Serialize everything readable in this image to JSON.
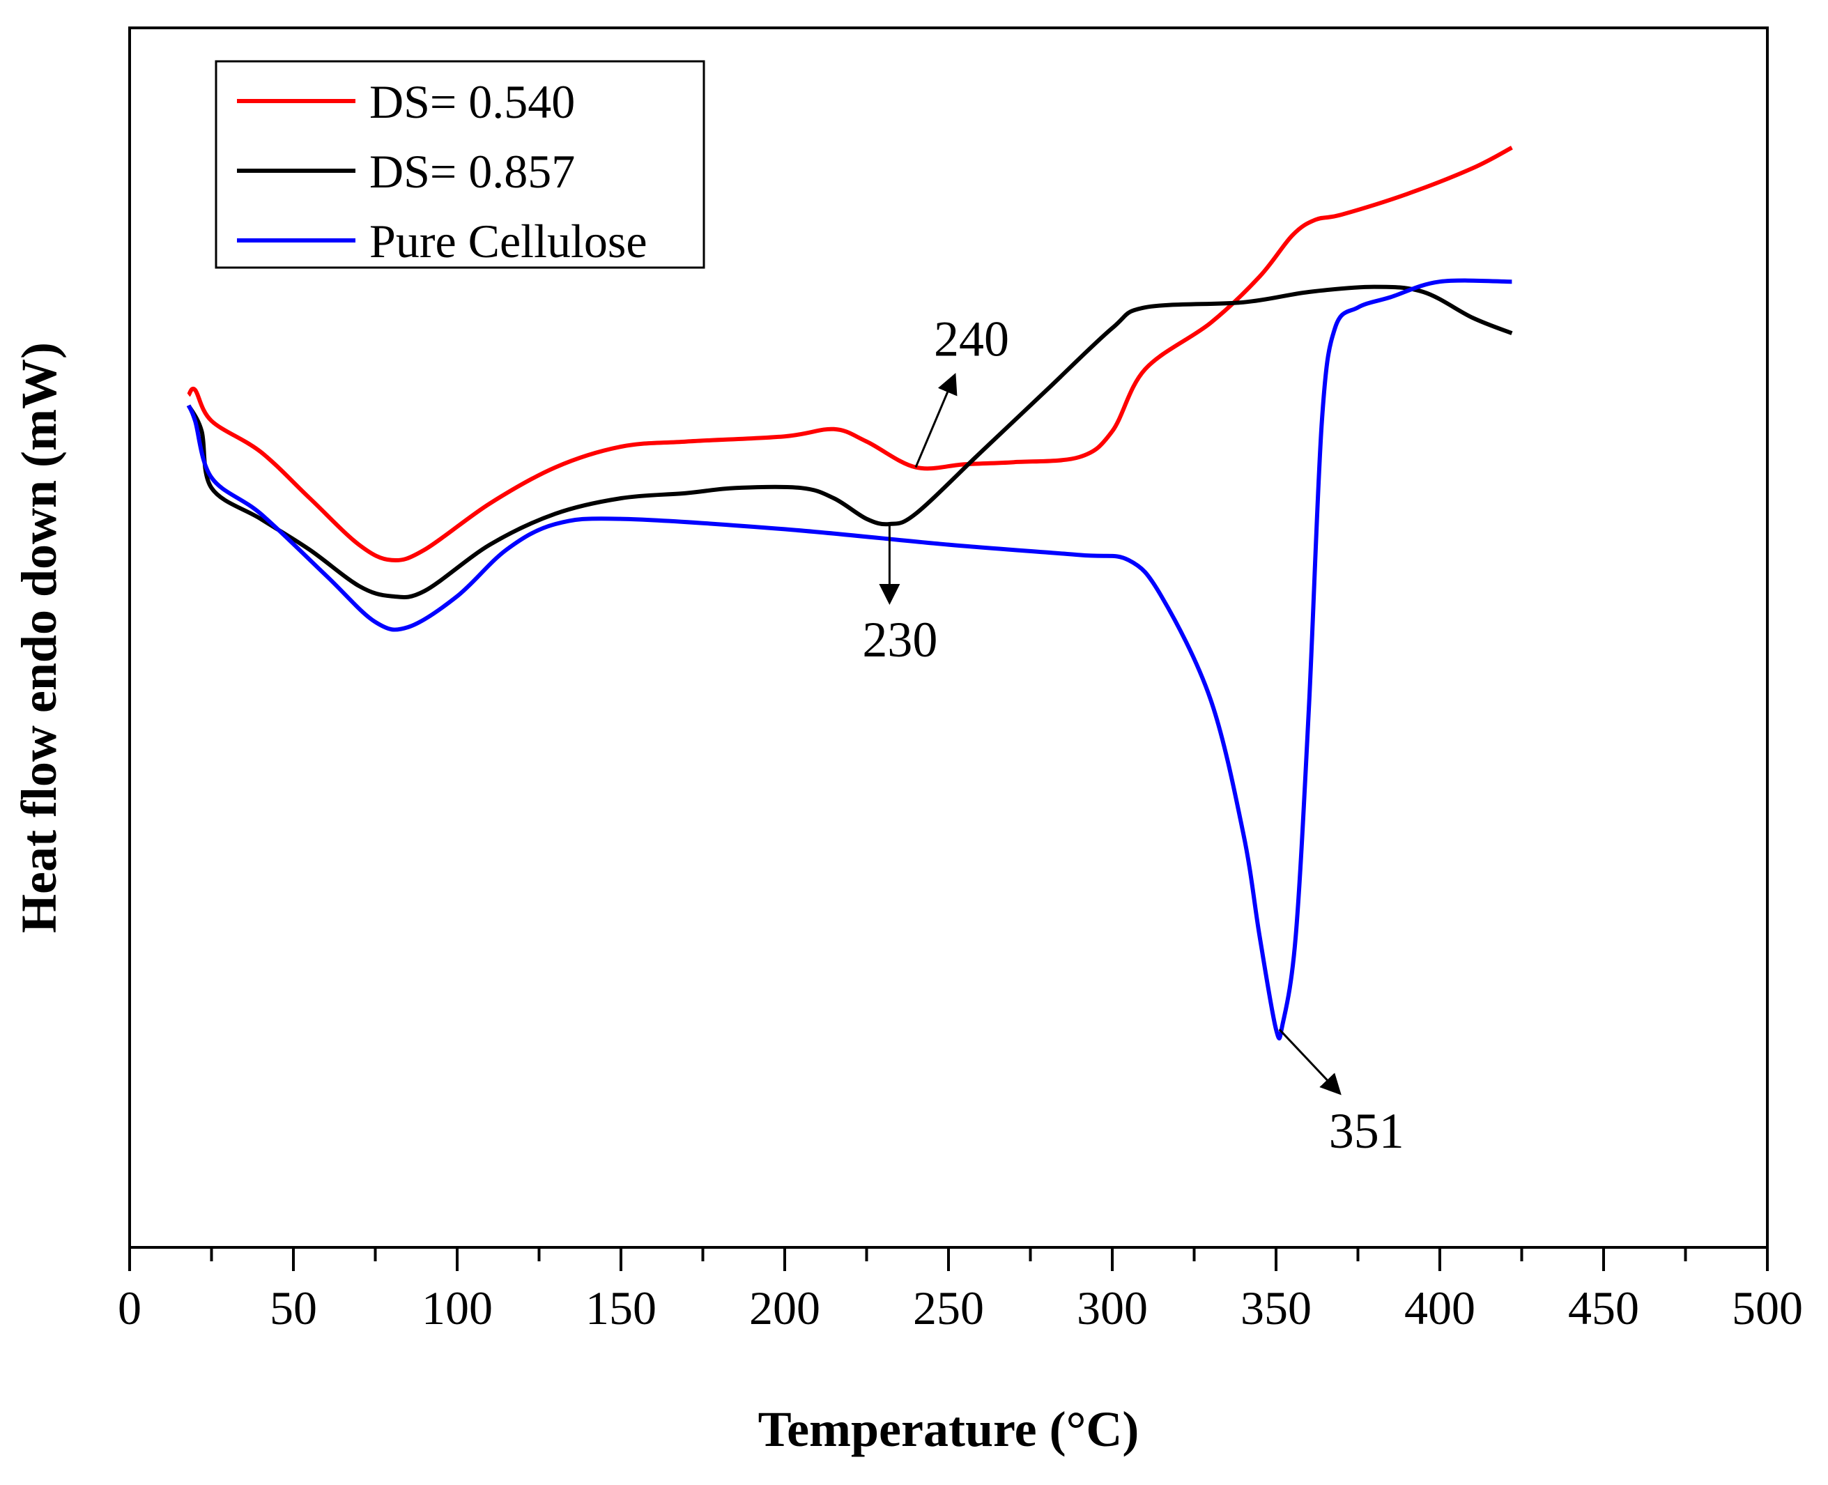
{
  "chart_data": {
    "type": "line",
    "title": "",
    "xlabel": "Temperature (°C)",
    "ylabel": "Heat flow endo down (mW)",
    "xlim": [
      0,
      500
    ],
    "ylim": [
      0,
      100
    ],
    "x_ticks": [
      0,
      50,
      100,
      150,
      200,
      250,
      300,
      350,
      400,
      450,
      500
    ],
    "y_ticks_shown": false,
    "legend_position": "top-left",
    "series": [
      {
        "name": "DS= 0.540",
        "color": "#ff0000",
        "x": [
          18,
          20,
          25,
          40,
          55,
          70,
          80,
          90,
          110,
          130,
          150,
          170,
          200,
          215,
          225,
          240,
          255,
          270,
          290,
          300,
          310,
          330,
          345,
          355,
          362,
          370,
          390,
          410,
          422
        ],
        "y": [
          72.5,
          73,
          70,
          67,
          62.5,
          58,
          56.5,
          57.5,
          62,
          65.5,
          67.5,
          68,
          68.5,
          69.2,
          68,
          65.5,
          65.8,
          66,
          66.5,
          69,
          75,
          79.5,
          84,
          88,
          89.5,
          90,
          92,
          94.5,
          96.5
        ]
      },
      {
        "name": "DS= 0.857",
        "color": "#000000",
        "x": [
          18,
          22,
          25,
          40,
          55,
          70,
          80,
          90,
          110,
          130,
          150,
          170,
          185,
          205,
          215,
          225,
          232,
          240,
          260,
          280,
          300,
          310,
          340,
          360,
          380,
          395,
          410,
          422
        ],
        "y": [
          71.5,
          69,
          63.5,
          60.5,
          57.5,
          54,
          53,
          53.5,
          58,
          61,
          62.5,
          63,
          63.5,
          63.5,
          62.5,
          60.5,
          60,
          61,
          67,
          73,
          79,
          81,
          81.5,
          82.5,
          83,
          82.5,
          80,
          78.5
        ]
      },
      {
        "name": "Pure Cellulose",
        "color": "#0000ff",
        "x": [
          18,
          20,
          25,
          40,
          60,
          75,
          85,
          100,
          115,
          130,
          150,
          200,
          250,
          290,
          305,
          315,
          330,
          340,
          345,
          350,
          352,
          356,
          360,
          364,
          368,
          375,
          385,
          400,
          422
        ],
        "y": [
          71.5,
          70,
          64.5,
          61,
          55,
          50.5,
          50,
          53,
          57.5,
          60,
          60.5,
          59.5,
          58,
          57,
          56.5,
          53,
          43,
          30,
          20,
          11,
          11.5,
          20,
          42,
          70,
          79,
          81,
          82,
          83.5,
          83.5
        ]
      }
    ],
    "annotations": [
      {
        "text": "240",
        "at_x": 240,
        "at_y": 65.5,
        "arrow": "up",
        "series": "DS= 0.540"
      },
      {
        "text": "230",
        "at_x": 232,
        "at_y": 60,
        "arrow": "down",
        "series": "DS= 0.857"
      },
      {
        "text": "351",
        "at_x": 351,
        "at_y": 11,
        "arrow": "down-right",
        "series": "Pure Cellulose"
      }
    ]
  }
}
